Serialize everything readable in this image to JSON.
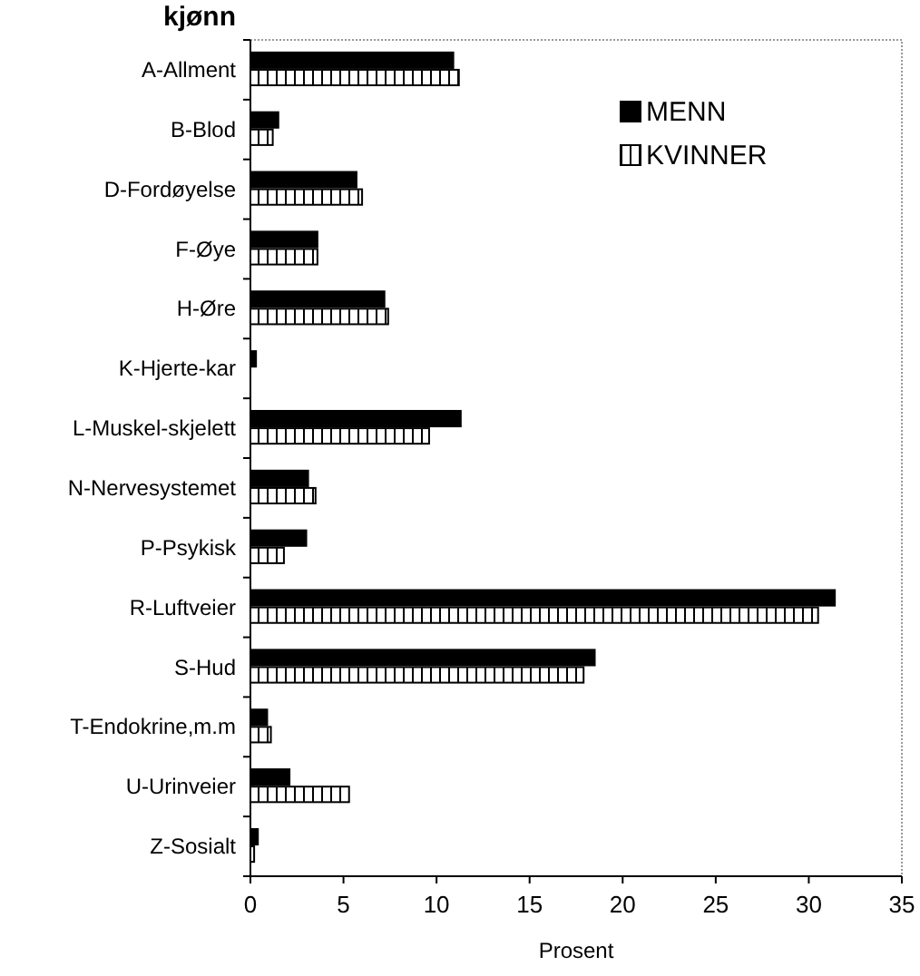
{
  "chart_data": {
    "type": "bar",
    "orientation": "horizontal",
    "title": "kjønn",
    "xlabel": "Prosent",
    "categories": [
      "A-Allment",
      "B-Blod",
      "D-Fordøyelse",
      "F-Øye",
      "H-Øre",
      "K-Hjerte-kar",
      "L-Muskel-skjelett",
      "N-Nervesystemet",
      "P-Psykisk",
      "R-Luftveier",
      "S-Hud",
      "T-Endokrine,m.m",
      "U-Urinveier",
      "Z-Sosialt"
    ],
    "series": [
      {
        "name": "MENN",
        "color": "#000000",
        "values": [
          10.9,
          1.5,
          5.7,
          3.6,
          7.2,
          0.3,
          11.3,
          3.1,
          3.0,
          31.4,
          18.5,
          0.9,
          2.1,
          0.4
        ]
      },
      {
        "name": "KVINNER",
        "color": "#ffffff",
        "values": [
          11.2,
          1.2,
          6.0,
          3.6,
          7.4,
          0,
          9.6,
          3.5,
          1.8,
          30.5,
          17.9,
          1.1,
          5.3,
          0.2
        ]
      }
    ],
    "xlim": [
      0,
      35
    ],
    "xticks": [
      0,
      5,
      10,
      15,
      20,
      25,
      30,
      35
    ],
    "grid": false,
    "legend": "top right"
  }
}
